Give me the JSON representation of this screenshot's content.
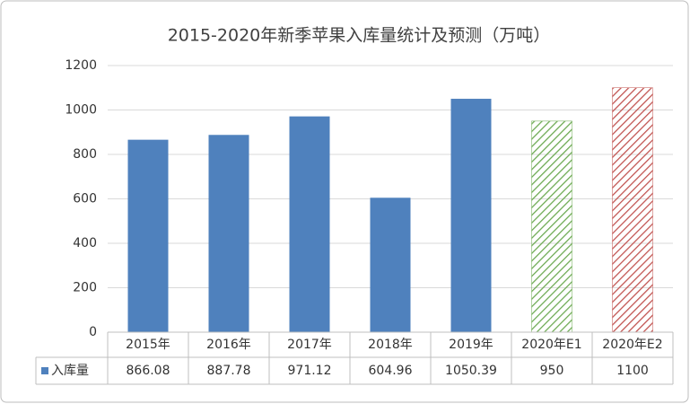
{
  "chart_data": {
    "type": "bar",
    "title": "2015-2020年新季苹果入库量统计及预测（万吨）",
    "categories": [
      "2015年",
      "2016年",
      "2017年",
      "2018年",
      "2019年",
      "2020年E1",
      "2020年E2"
    ],
    "series": [
      {
        "name": "入库量",
        "color": "#4f81bd",
        "values": [
          866.08,
          887.78,
          971.12,
          604.96,
          1050.39,
          950,
          1100
        ],
        "bar_colors": [
          "#4f81bd",
          "#4f81bd",
          "#4f81bd",
          "#4f81bd",
          "#4f81bd",
          "#6aa84f",
          "#c0504d"
        ],
        "hatched": [
          false,
          false,
          false,
          false,
          false,
          true,
          true
        ]
      }
    ],
    "ylim": [
      0,
      1200
    ],
    "yticks": [
      0,
      200,
      400,
      600,
      800,
      1000,
      1200
    ],
    "grid": true,
    "data_table": true
  }
}
